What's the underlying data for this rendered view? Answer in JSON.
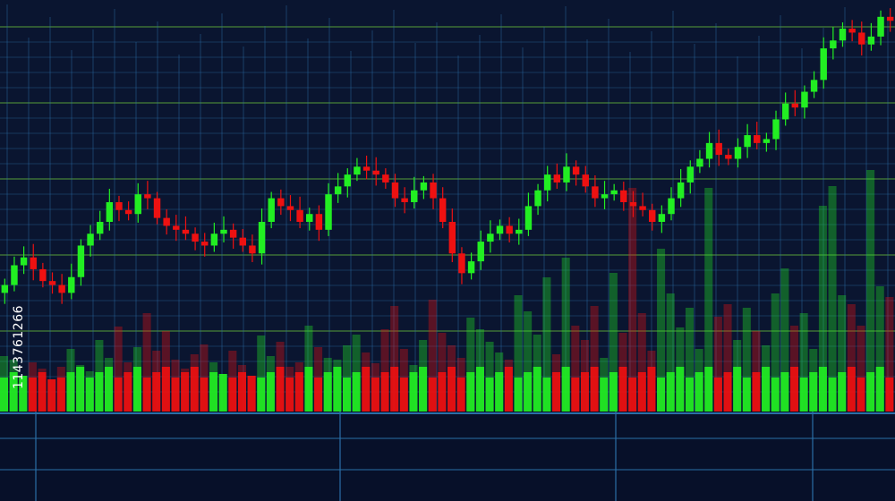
{
  "stock_id": "1143761266",
  "colors": {
    "background": "#0a1530",
    "up": "#22ee22",
    "down": "#ee1111",
    "grid_blue": "#2a6fa8",
    "grid_green": "#6bbf3a"
  },
  "chart_data": {
    "type": "candlestick",
    "title": "",
    "xlabel": "",
    "ylabel": "",
    "grid": true,
    "legend": "none",
    "close": [
      2.3,
      2.55,
      2.65,
      2.5,
      2.35,
      2.3,
      2.2,
      2.4,
      2.8,
      2.95,
      3.1,
      3.35,
      3.25,
      3.2,
      3.45,
      3.4,
      3.15,
      3.05,
      3.0,
      2.95,
      2.85,
      2.8,
      2.95,
      3.0,
      2.9,
      2.8,
      2.7,
      3.1,
      3.4,
      3.3,
      3.25,
      3.1,
      3.2,
      3.0,
      3.45,
      3.55,
      3.7,
      3.8,
      3.75,
      3.7,
      3.6,
      3.4,
      3.35,
      3.5,
      3.6,
      3.4,
      3.1,
      2.7,
      2.45,
      2.6,
      2.85,
      2.95,
      3.05,
      2.95,
      3.0,
      3.3,
      3.5,
      3.7,
      3.6,
      3.8,
      3.7,
      3.55,
      3.4,
      3.45,
      3.5,
      3.35,
      3.3,
      3.25,
      3.1,
      3.2,
      3.4,
      3.6,
      3.8,
      3.9,
      4.1,
      3.95,
      3.9,
      4.05,
      4.2,
      4.1,
      4.15,
      4.4,
      4.6,
      4.55,
      4.75,
      4.9,
      5.3,
      5.4,
      5.55,
      5.5,
      5.35,
      5.45,
      5.7,
      5.65
    ],
    "volume": [
      62,
      58,
      40,
      55,
      48,
      36,
      50,
      70,
      52,
      45,
      80,
      60,
      95,
      55,
      72,
      110,
      68,
      90,
      58,
      48,
      64,
      75,
      55,
      42,
      68,
      52,
      40,
      85,
      62,
      78,
      50,
      55,
      96,
      72,
      60,
      58,
      74,
      86,
      66,
      54,
      92,
      118,
      70,
      52,
      80,
      125,
      88,
      74,
      60,
      105,
      92,
      78,
      66,
      58,
      130,
      112,
      86,
      150,
      64,
      172,
      96,
      80,
      118,
      60,
      155,
      88,
      250,
      110,
      68,
      182,
      132,
      94,
      116,
      70,
      250,
      106,
      120,
      80,
      116,
      90,
      74,
      132,
      160,
      96,
      110,
      70,
      230,
      252,
      130,
      120,
      96,
      270,
      140,
      128
    ]
  }
}
